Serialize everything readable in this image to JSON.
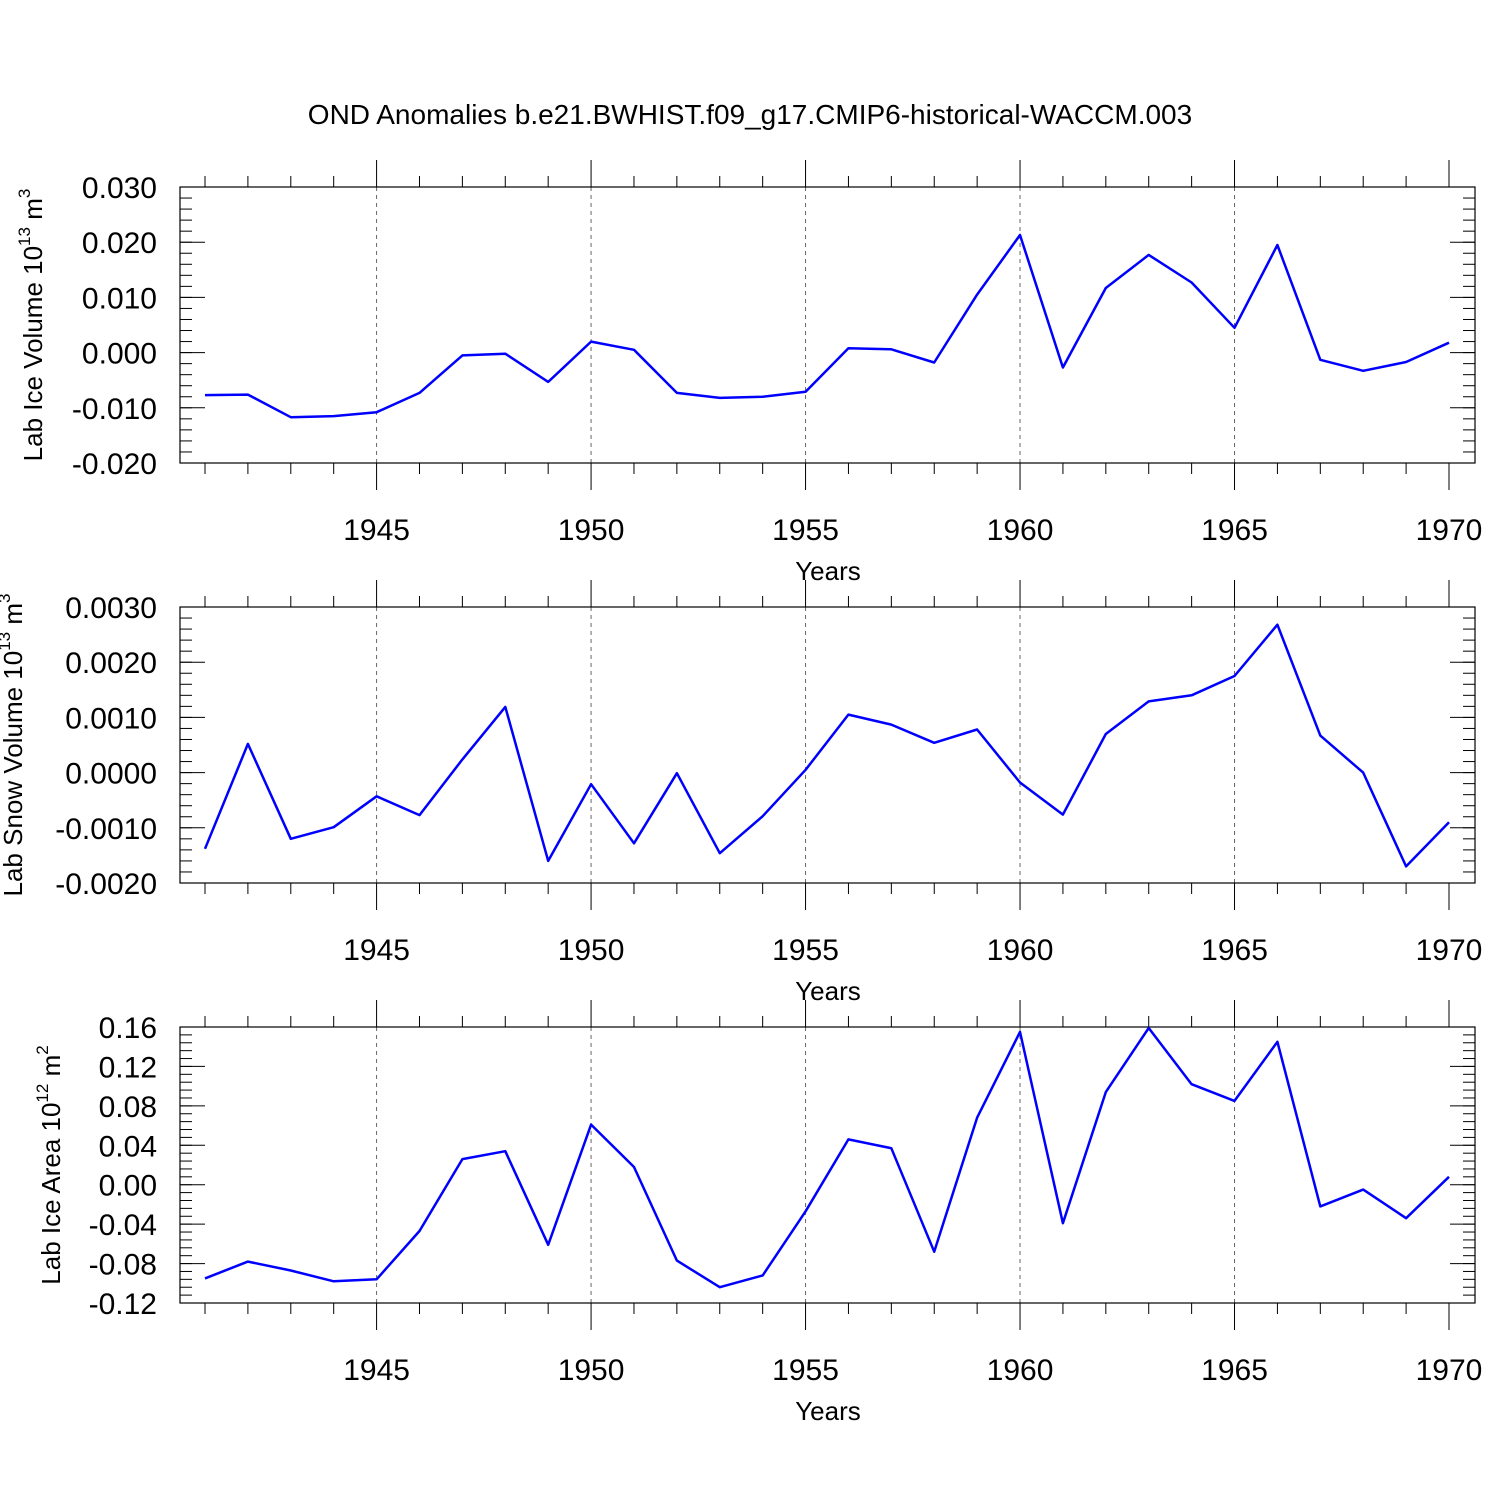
{
  "title": "OND Anomalies b.e21.BWHIST.f09_g17.CMIP6-historical-WACCM.003",
  "series_color": "#0000ff",
  "chart_data": [
    {
      "type": "line",
      "ylabel_main": "Lab Ice Volume 10",
      "ylabel_exp": "13",
      "ylabel_unit": " m",
      "ylabel_unit_exp": "3",
      "xlabel": "Years",
      "xlim": [
        1941,
        1970
      ],
      "ylim": [
        -0.02,
        0.03
      ],
      "y_ticks": [
        -0.02,
        -0.01,
        0.0,
        0.01,
        0.02,
        0.03
      ],
      "y_tick_labels": [
        "-0.020",
        "-0.010",
        "0.000",
        "0.010",
        "0.020",
        "0.030"
      ],
      "y_minor_step": 0.002,
      "x_ticks": [
        1945,
        1950,
        1955,
        1960,
        1965,
        1970
      ],
      "x_tick_labels": [
        "1945",
        "1950",
        "1955",
        "1960",
        "1965",
        "1970"
      ],
      "x": [
        1941,
        1942,
        1943,
        1944,
        1945,
        1946,
        1947,
        1948,
        1949,
        1950,
        1951,
        1952,
        1953,
        1954,
        1955,
        1956,
        1957,
        1958,
        1959,
        1960,
        1961,
        1962,
        1963,
        1964,
        1965,
        1966,
        1967,
        1968,
        1969,
        1970
      ],
      "values": [
        -0.0077,
        -0.0076,
        -0.0117,
        -0.0115,
        -0.0108,
        -0.0073,
        -0.0005,
        -0.0002,
        -0.0053,
        0.002,
        0.0005,
        -0.0073,
        -0.0082,
        -0.008,
        -0.0071,
        0.0008,
        0.0006,
        -0.0018,
        0.0105,
        0.0213,
        -0.0027,
        0.0117,
        0.0177,
        0.0127,
        0.0045,
        0.0195,
        -0.0013,
        -0.0033,
        -0.0017,
        0.0018
      ]
    },
    {
      "type": "line",
      "ylabel_main": "Lab Snow Volume 10",
      "ylabel_exp": "13",
      "ylabel_unit": " m",
      "ylabel_unit_exp": "3",
      "xlabel": "Years",
      "xlim": [
        1941,
        1970
      ],
      "ylim": [
        -0.002,
        0.003
      ],
      "y_ticks": [
        -0.002,
        -0.001,
        0.0,
        0.001,
        0.002,
        0.003
      ],
      "y_tick_labels": [
        "-0.0020",
        "-0.0010",
        "0.0000",
        "0.0010",
        "0.0020",
        "0.0030"
      ],
      "y_minor_step": 0.0002,
      "x_ticks": [
        1945,
        1950,
        1955,
        1960,
        1965,
        1970
      ],
      "x_tick_labels": [
        "1945",
        "1950",
        "1955",
        "1960",
        "1965",
        "1970"
      ],
      "x": [
        1941,
        1942,
        1943,
        1944,
        1945,
        1946,
        1947,
        1948,
        1949,
        1950,
        1951,
        1952,
        1953,
        1954,
        1955,
        1956,
        1957,
        1958,
        1959,
        1960,
        1961,
        1962,
        1963,
        1964,
        1965,
        1966,
        1967,
        1968,
        1969,
        1970
      ],
      "values": [
        -0.00138,
        0.00052,
        -0.0012,
        -0.00099,
        -0.00043,
        -0.00077,
        0.00024,
        0.00119,
        -0.0016,
        -0.00021,
        -0.00128,
        -1e-05,
        -0.00146,
        -0.00079,
        5e-05,
        0.00105,
        0.00087,
        0.00054,
        0.00078,
        -0.00018,
        -0.00076,
        0.0007,
        0.00129,
        0.0014,
        0.00175,
        0.00268,
        0.00067,
        0.0,
        -0.0017,
        -0.0009
      ]
    },
    {
      "type": "line",
      "ylabel_main": "Lab Ice Area 10",
      "ylabel_exp": "12",
      "ylabel_unit": " m",
      "ylabel_unit_exp": "2",
      "xlabel": "Years",
      "xlim": [
        1941,
        1970
      ],
      "ylim": [
        -0.12,
        0.16
      ],
      "y_ticks": [
        -0.12,
        -0.08,
        -0.04,
        0.0,
        0.04,
        0.08,
        0.12,
        0.16
      ],
      "y_tick_labels": [
        "-0.12",
        "-0.08",
        "-0.04",
        "0.00",
        "0.04",
        "0.08",
        "0.12",
        "0.16"
      ],
      "y_minor_step": 0.008,
      "x_ticks": [
        1945,
        1950,
        1955,
        1960,
        1965,
        1970
      ],
      "x_tick_labels": [
        "1945",
        "1950",
        "1955",
        "1960",
        "1965",
        "1970"
      ],
      "x": [
        1941,
        1942,
        1943,
        1944,
        1945,
        1946,
        1947,
        1948,
        1949,
        1950,
        1951,
        1952,
        1953,
        1954,
        1955,
        1956,
        1957,
        1958,
        1959,
        1960,
        1961,
        1962,
        1963,
        1964,
        1965,
        1966,
        1967,
        1968,
        1969,
        1970
      ],
      "values": [
        -0.095,
        -0.078,
        -0.087,
        -0.098,
        -0.096,
        -0.047,
        0.026,
        0.034,
        -0.061,
        0.061,
        0.018,
        -0.077,
        -0.104,
        -0.092,
        -0.027,
        0.046,
        0.037,
        -0.068,
        0.068,
        0.155,
        -0.039,
        0.094,
        0.159,
        0.102,
        0.085,
        0.145,
        -0.022,
        -0.005,
        -0.034,
        0.008
      ]
    }
  ]
}
